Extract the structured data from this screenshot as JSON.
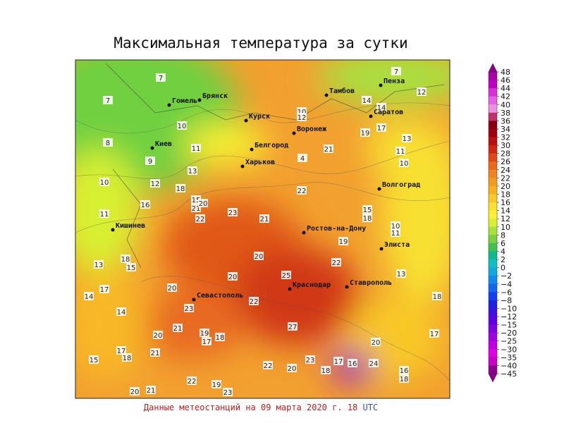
{
  "title": "Максимальная температура за сутки",
  "footer": {
    "text": "Данные метеостанций на 09 марта 2020 г. 18",
    "unit": "UTC"
  },
  "cities": [
    "Пенза",
    "Тамбов",
    "Гомель",
    "Брянск",
    "Саратов",
    "Курск",
    "Воронеж",
    "Киев",
    "Белгород",
    "Харьков",
    "Волгоград",
    "Кишинев",
    "Ростов-на-Дону",
    "Элиста",
    "Краснодар",
    "Ставрополь",
    "Севастополь"
  ],
  "stations": [
    "7",
    "7",
    "8",
    "10",
    "11",
    "9",
    "13",
    "10",
    "12",
    "18",
    "11",
    "16",
    "15",
    "21",
    "20",
    "22",
    "23",
    "21",
    "18",
    "15",
    "13",
    "17",
    "14",
    "20",
    "20",
    "20",
    "25",
    "22",
    "22",
    "23",
    "14",
    "20",
    "21",
    "19",
    "17",
    "18",
    "17",
    "18",
    "21",
    "15",
    "27",
    "22",
    "23",
    "20",
    "18",
    "17",
    "16",
    "24",
    "20",
    "16",
    "18",
    "17",
    "22",
    "19",
    "23",
    "20",
    "21",
    "12",
    "7",
    "14",
    "17",
    "19",
    "13",
    "11",
    "10",
    "21",
    "22",
    "15",
    "18",
    "19",
    "10",
    "11",
    "13",
    "18",
    "4",
    "10",
    "12",
    "14"
  ],
  "colorbar": [
    {
      "label": "48",
      "color": "#8a008a"
    },
    {
      "label": "46",
      "color": "#a600a6"
    },
    {
      "label": "44",
      "color": "#c000c0"
    },
    {
      "label": "42",
      "color": "#d830d8"
    },
    {
      "label": "40",
      "color": "#e860e8"
    },
    {
      "label": "38",
      "color": "#f090e0"
    },
    {
      "label": "36",
      "color": "#c0306a"
    },
    {
      "label": "34",
      "color": "#8a0010"
    },
    {
      "label": "32",
      "color": "#a00010"
    },
    {
      "label": "30",
      "color": "#b81010"
    },
    {
      "label": "28",
      "color": "#d02810"
    },
    {
      "label": "26",
      "color": "#e04818"
    },
    {
      "label": "24",
      "color": "#ea6a18"
    },
    {
      "label": "22",
      "color": "#f08420"
    },
    {
      "label": "20",
      "color": "#f59a20"
    },
    {
      "label": "18",
      "color": "#f8b020"
    },
    {
      "label": "16",
      "color": "#fbc828"
    },
    {
      "label": "14",
      "color": "#fde030"
    },
    {
      "label": "12",
      "color": "#f8f030"
    },
    {
      "label": "10",
      "color": "#d8f030"
    },
    {
      "label": "8",
      "color": "#a8e040"
    },
    {
      "label": "6",
      "color": "#78d040"
    },
    {
      "label": "4",
      "color": "#40c050"
    },
    {
      "label": "2",
      "color": "#10b890"
    },
    {
      "label": "0",
      "color": "#10c0c0"
    },
    {
      "label": "−2",
      "color": "#10a8e0"
    },
    {
      "label": "−4",
      "color": "#1088f0"
    },
    {
      "label": "−6",
      "color": "#1068f0"
    },
    {
      "label": "−8",
      "color": "#1040f0"
    },
    {
      "label": "−10",
      "color": "#2020e0"
    },
    {
      "label": "−12",
      "color": "#4010e0"
    },
    {
      "label": "−15",
      "color": "#6000e0"
    },
    {
      "label": "−20",
      "color": "#8000e0"
    },
    {
      "label": "−25",
      "color": "#a000e0"
    },
    {
      "label": "−30",
      "color": "#c000e0"
    },
    {
      "label": "−35",
      "color": "#e000e0"
    },
    {
      "label": "−40",
      "color": "#c800c8"
    },
    {
      "label": "−45",
      "color": "#900090"
    }
  ]
}
